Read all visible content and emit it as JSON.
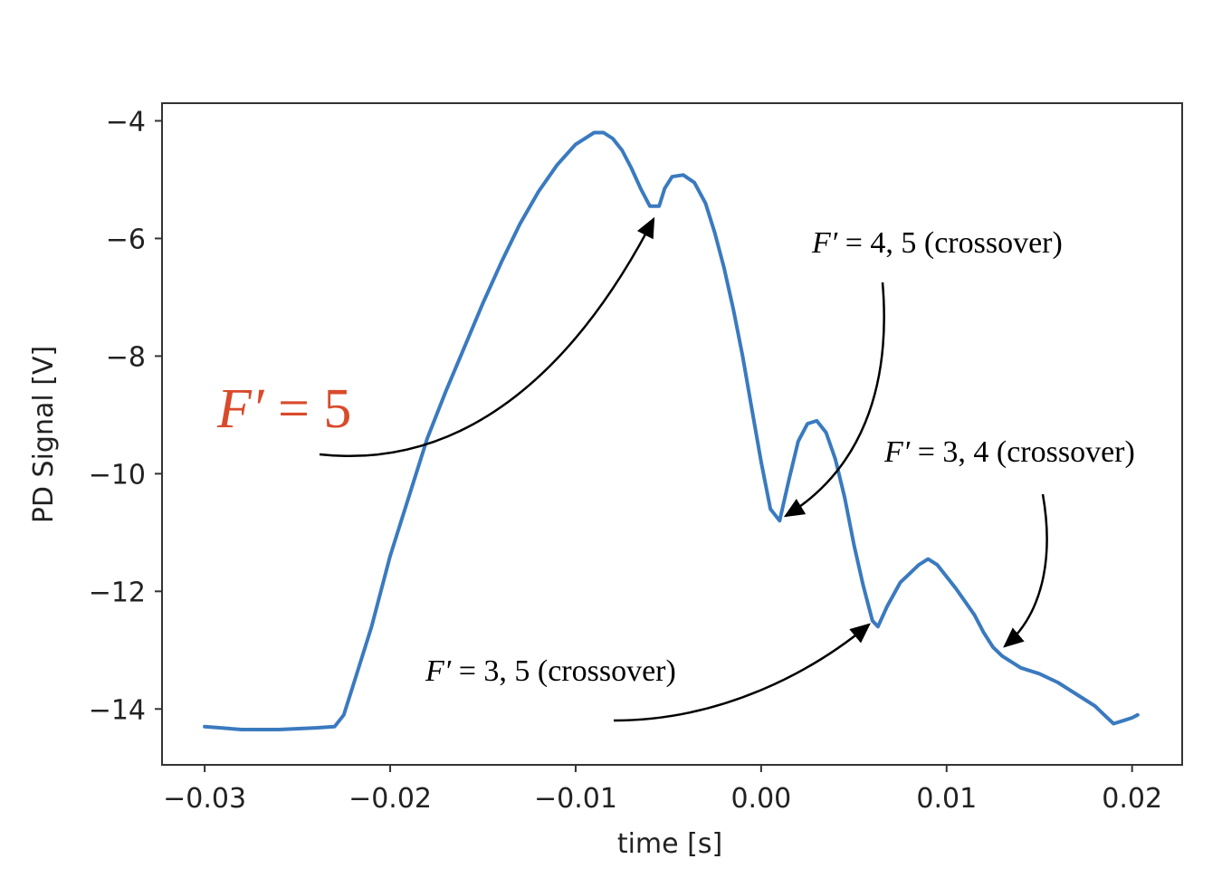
{
  "chart_data": {
    "type": "line",
    "title": "",
    "xlabel": "time [s]",
    "ylabel": "PD Signal [V]",
    "xlim": [
      -0.0323,
      0.0227
    ],
    "ylim": [
      -14.95,
      -3.7
    ],
    "xticks": [
      -0.03,
      -0.02,
      -0.01,
      0.0,
      0.01,
      0.02
    ],
    "xtick_labels": [
      "−0.03",
      "−0.02",
      "−0.01",
      "0.00",
      "0.01",
      "0.02"
    ],
    "yticks": [
      -4,
      -6,
      -8,
      -10,
      -12,
      -14
    ],
    "ytick_labels": [
      "−4",
      "−6",
      "−8",
      "−10",
      "−12",
      "−14"
    ],
    "grid": false,
    "series_color": "#3a7abf",
    "annotation_color": "#000000",
    "highlight_color": "#d94a2b",
    "series": [
      {
        "x": [
          -0.03,
          -0.028,
          -0.026,
          -0.024,
          -0.023,
          -0.0225,
          -0.022,
          -0.021,
          -0.02,
          -0.019,
          -0.018,
          -0.017,
          -0.016,
          -0.015,
          -0.014,
          -0.013,
          -0.012,
          -0.011,
          -0.01,
          -0.009,
          -0.0085,
          -0.008,
          -0.0075,
          -0.007,
          -0.0065,
          -0.006,
          -0.0055,
          -0.0052,
          -0.0048,
          -0.0042,
          -0.0036,
          -0.003,
          -0.0025,
          -0.002,
          -0.0015,
          -0.001,
          -0.0005,
          0.0,
          0.0005,
          0.001,
          0.0015,
          0.002,
          0.0025,
          0.003,
          0.0035,
          0.004,
          0.0045,
          0.005,
          0.0055,
          0.006,
          0.0063,
          0.0068,
          0.0075,
          0.0085,
          0.009,
          0.0095,
          0.0105,
          0.0115,
          0.012,
          0.0125,
          0.013,
          0.0135,
          0.014,
          0.015,
          0.016,
          0.017,
          0.018,
          0.0185,
          0.019,
          0.0195,
          0.02,
          0.0203
        ],
        "y": [
          -14.3,
          -14.35,
          -14.35,
          -14.32,
          -14.3,
          -14.1,
          -13.6,
          -12.6,
          -11.4,
          -10.4,
          -9.4,
          -8.6,
          -7.85,
          -7.1,
          -6.4,
          -5.75,
          -5.2,
          -4.75,
          -4.4,
          -4.2,
          -4.2,
          -4.3,
          -4.5,
          -4.8,
          -5.15,
          -5.45,
          -5.45,
          -5.15,
          -4.95,
          -4.92,
          -5.05,
          -5.4,
          -5.9,
          -6.5,
          -7.2,
          -8.0,
          -8.9,
          -9.8,
          -10.6,
          -10.8,
          -10.1,
          -9.45,
          -9.15,
          -9.1,
          -9.3,
          -9.75,
          -10.4,
          -11.2,
          -11.9,
          -12.5,
          -12.6,
          -12.25,
          -11.85,
          -11.55,
          -11.45,
          -11.55,
          -11.95,
          -12.4,
          -12.7,
          -12.95,
          -13.1,
          -13.2,
          -13.3,
          -13.4,
          -13.55,
          -13.75,
          -13.95,
          -14.1,
          -14.25,
          -14.2,
          -14.15,
          -14.1
        ]
      }
    ],
    "annotations": [
      {
        "prefix": "F′",
        "rest": " = 5",
        "highlight": true,
        "tip_x": -0.0052,
        "tip_y": -5.5
      },
      {
        "prefix": "F′",
        "rest": " = 4,  5  (crossover)",
        "highlight": false,
        "tip_x": 0.0017,
        "tip_y": -10.7
      },
      {
        "prefix": "F′",
        "rest": " = 3,  4  (crossover)",
        "highlight": false,
        "tip_x": 0.0132,
        "tip_y": -12.95
      },
      {
        "prefix": "F′",
        "rest": " = 3,  5  (crossover)",
        "highlight": false,
        "tip_x": 0.0063,
        "tip_y": -12.5
      }
    ]
  }
}
